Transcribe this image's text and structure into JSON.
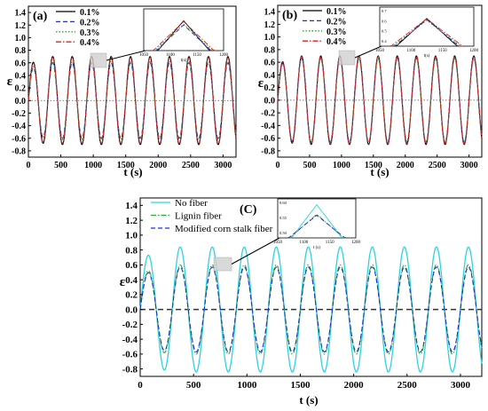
{
  "chart_data": [
    {
      "panel": "(a)",
      "type": "line",
      "xlabel": "t (s)",
      "ylabel": "ε",
      "xlim": [
        0,
        3200
      ],
      "ylim": [
        -0.9,
        1.5
      ],
      "x_ticks": [
        "0",
        "500",
        "1000",
        "1500",
        "2000",
        "2500",
        "3000"
      ],
      "y_ticks": [
        "-0.8",
        "-0.6",
        "-0.4",
        "-0.2",
        "0.0",
        "0.2",
        "0.4",
        "0.6",
        "0.8",
        "1.0",
        "1.2",
        "1.4"
      ],
      "legend_position": "top-left",
      "period": 300,
      "series": [
        {
          "name": "0.1%",
          "color": "#000000",
          "dash": "solid",
          "amplitude": 0.7
        },
        {
          "name": "0.2%",
          "color": "#1f2fd9",
          "dash": "dashed",
          "amplitude": 0.6
        },
        {
          "name": "0.3%",
          "color": "#2ea82e",
          "dash": "dotted",
          "amplitude": 0.62
        },
        {
          "name": "0.4%",
          "color": "#e0201b",
          "dash": "dashdot",
          "amplitude": 0.68
        }
      ],
      "inset": {
        "x_ticks": [
          "1050",
          "1100",
          "1150",
          "1200"
        ],
        "y_ticks": [],
        "xlabel": "t(s)",
        "xlim": [
          1050,
          1200
        ]
      }
    },
    {
      "panel": "(b)",
      "type": "line",
      "xlabel": "t (s)",
      "ylabel": "ε",
      "xlim": [
        0,
        3200
      ],
      "ylim": [
        -0.9,
        1.5
      ],
      "x_ticks": [
        "0",
        "500",
        "1000",
        "1500",
        "2000",
        "2500",
        "3000"
      ],
      "y_ticks": [
        "-0.8",
        "-0.6",
        "-0.4",
        "-0.2",
        "0.0",
        "0.2",
        "0.4",
        "0.6",
        "0.8",
        "1.0",
        "1.2",
        "1.4"
      ],
      "legend_position": "top-left",
      "period": 300,
      "series": [
        {
          "name": "0.1%",
          "color": "#000000",
          "dash": "solid",
          "amplitude": 0.7
        },
        {
          "name": "0.2%",
          "color": "#1f2fd9",
          "dash": "dashed",
          "amplitude": 0.67
        },
        {
          "name": "0.3%",
          "color": "#2ea82e",
          "dash": "dotted",
          "amplitude": 0.65
        },
        {
          "name": "0.4%",
          "color": "#e0201b",
          "dash": "dashdot",
          "amplitude": 0.69
        }
      ],
      "inset": {
        "x_ticks": [
          "1050",
          "1100",
          "1150",
          "1200"
        ],
        "y_ticks": [
          "0.7",
          "0.6",
          "0.5",
          "0.4"
        ],
        "xlabel": "t(s)",
        "xlim": [
          1050,
          1200
        ]
      }
    },
    {
      "panel": "(C)",
      "type": "line",
      "xlabel": "t (s)",
      "ylabel": "ε",
      "xlim": [
        0,
        3200
      ],
      "ylim": [
        -0.9,
        1.5
      ],
      "x_ticks": [
        "0",
        "500",
        "1000",
        "1500",
        "2000",
        "2500",
        "3000"
      ],
      "y_ticks": [
        "-0.8",
        "-0.6",
        "-0.4",
        "-0.2",
        "0.0",
        "0.2",
        "0.4",
        "0.6",
        "0.8",
        "1.0",
        "1.2",
        "1.4"
      ],
      "legend_position": "top-left",
      "period": 300,
      "series": [
        {
          "name": "No fiber",
          "color": "#2fd3df",
          "dash": "solid",
          "amplitude": 0.84
        },
        {
          "name": "Lignin fiber",
          "color": "#2ea82e",
          "dash": "dashdot",
          "amplitude": 0.6
        },
        {
          "name": "Modified corn stalk fiber",
          "color": "#1f2fd9",
          "dash": "dashed",
          "amplitude": 0.57
        }
      ],
      "inset": {
        "x_ticks": [
          "1050",
          "1100",
          "1150",
          "1200"
        ],
        "y_ticks": [
          "0.60",
          "0.55",
          "0.50"
        ],
        "xlabel": "t (s)",
        "xlim": [
          1050,
          1200
        ]
      }
    }
  ]
}
